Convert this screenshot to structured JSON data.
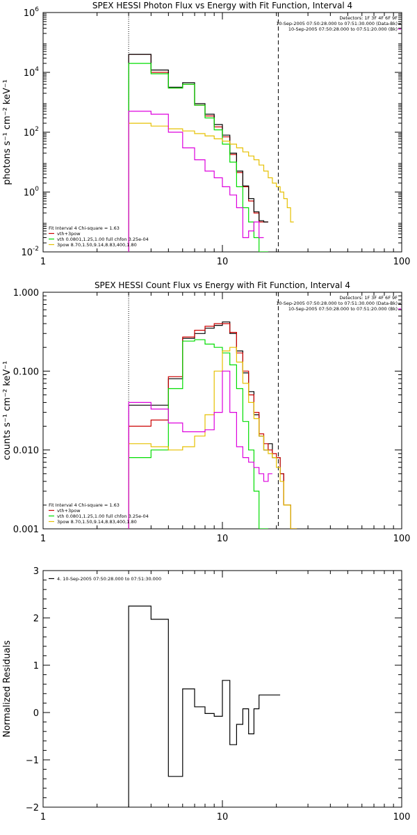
{
  "colors": {
    "background": "#ffffff",
    "axis": "#000000",
    "data": "#000000",
    "total_fit": "#cc0000",
    "thermal": "#00dd00",
    "powerlaw": "#e6c000",
    "background_model": "#dd00dd"
  },
  "chart_data": [
    {
      "type": "line",
      "step": true,
      "title": "SPEX HESSI Photon Flux vs Energy with Fit Function, Interval 4",
      "xlabel": "",
      "ylabel": "photons s⁻¹ cm⁻² keV⁻¹",
      "xscale": "log",
      "yscale": "log",
      "xlim": [
        1,
        100
      ],
      "ylim": [
        0.01,
        1000000
      ],
      "xticks": [
        1,
        10,
        100
      ],
      "xtick_labels": [
        "1",
        "10",
        "100"
      ],
      "yticks": [
        0.01,
        1,
        100,
        10000,
        1000000
      ],
      "ytick_labels": [
        {
          "base": "10",
          "exp": "-2"
        },
        {
          "base": "10",
          "exp": "0"
        },
        {
          "base": "10",
          "exp": "2"
        },
        {
          "base": "10",
          "exp": "4"
        },
        {
          "base": "10",
          "exp": "6"
        }
      ],
      "vlines": [
        {
          "x": 3,
          "style": "dotted"
        },
        {
          "x": 20.5,
          "style": "dashed"
        }
      ],
      "info_lines": [
        "Detectors: 1F 3F 4F 6F 9F",
        "10-Sep-2005 07:50:28.000 to 07:51:30.000 (Data-Bk)",
        "10-Sep-2005 07:50:28.000 to 07:51:20.000 (Bk)"
      ],
      "legend": {
        "header": "Fit Interval 4   Chi-square = 1.63",
        "entries": [
          {
            "label": "vth+3pow",
            "color": "#cc0000"
          },
          {
            "label": "vth 0.0801,1.25,1.00   full chfon 3.25e-04",
            "color": "#00dd00"
          },
          {
            "label": "3pow 8.70,1.50,9.14,8.83,400,1.80",
            "color": "#e6c000"
          }
        ]
      },
      "edges": [
        3,
        4,
        5,
        6,
        7,
        8,
        9,
        10,
        11,
        12,
        13,
        14,
        15,
        16,
        17,
        18,
        19,
        20,
        21,
        22,
        23,
        24,
        25
      ],
      "series": [
        {
          "name": "vth+3pow",
          "role": "total",
          "values": [
            40000,
            10000,
            3000,
            4000,
            800,
            350,
            150,
            70,
            18,
            4.5,
            1.5,
            0.5,
            0.2,
            0.1,
            0.1,
            null,
            null,
            null,
            null,
            null,
            null,
            null
          ]
        },
        {
          "name": "data",
          "role": "data",
          "values": [
            40000,
            12000,
            3200,
            4500,
            900,
            400,
            180,
            80,
            20,
            5,
            1.6,
            0.6,
            0.22,
            0.11,
            0.1,
            null,
            null,
            null,
            null,
            null,
            null,
            null
          ]
        },
        {
          "name": "vth",
          "role": "thermal",
          "values": [
            20000,
            9000,
            3000,
            4000,
            800,
            300,
            120,
            40,
            10,
            1.5,
            0.3,
            0.1,
            0.03,
            0.01,
            0.01,
            null,
            null,
            null,
            null,
            null,
            null,
            null
          ]
        },
        {
          "name": "3pow",
          "role": "powerlaw",
          "values": [
            200,
            160,
            130,
            110,
            90,
            75,
            60,
            50,
            40,
            30,
            22,
            16,
            12,
            8,
            5,
            3,
            2,
            1.5,
            1,
            0.6,
            0.3,
            0.1
          ]
        },
        {
          "name": "bk",
          "role": "background",
          "values": [
            500,
            400,
            100,
            30,
            12,
            5,
            3,
            1.5,
            0.8,
            0.3,
            0.03,
            0.05,
            0.1,
            0.03,
            null,
            null,
            null,
            null,
            null,
            null,
            null,
            null
          ]
        }
      ]
    },
    {
      "type": "line",
      "step": true,
      "title": "SPEX HESSI Count Flux vs Energy with Fit Function, Interval 4",
      "xlabel": "",
      "ylabel": "counts s⁻¹ cm⁻² keV⁻¹",
      "xscale": "log",
      "yscale": "log",
      "xlim": [
        1,
        100
      ],
      "ylim": [
        0.001,
        1
      ],
      "xticks": [
        1,
        10,
        100
      ],
      "xtick_labels": [
        "1",
        "10",
        "100"
      ],
      "yticks": [
        0.001,
        0.01,
        0.1,
        1
      ],
      "ytick_labels": [
        "0.001",
        "0.010",
        "0.100",
        "1.000"
      ],
      "vlines": [
        {
          "x": 3,
          "style": "dotted"
        },
        {
          "x": 20.5,
          "style": "dashed"
        }
      ],
      "info_lines": [
        "Detectors: 1F 3F 4F 6F 9F",
        "10-Sep-2005 07:50:28.000 to 07:51:30.000 (Data-Bk)",
        "10-Sep-2005 07:50:28.000 to 07:51:20.000 (Bk)"
      ],
      "legend": {
        "header": "Fit Interval 4   Chi-square = 1.63",
        "entries": [
          {
            "label": "vth+3pow",
            "color": "#cc0000"
          },
          {
            "label": "vth 0.0801,1.25,1.00   full chfon 3.25e-04",
            "color": "#00dd00"
          },
          {
            "label": "3pow 8.70,1.50,9.14,8.83,400,1.80",
            "color": "#e6c000"
          }
        ]
      },
      "edges": [
        3,
        4,
        5,
        6,
        7,
        8,
        9,
        10,
        11,
        12,
        13,
        14,
        15,
        16,
        17,
        18,
        19,
        20,
        21,
        22,
        23,
        24,
        25,
        26
      ],
      "series": [
        {
          "name": "data",
          "role": "data",
          "values": [
            0.037,
            0.037,
            0.08,
            0.26,
            0.3,
            0.35,
            0.38,
            0.42,
            0.3,
            0.18,
            0.095,
            0.055,
            0.028,
            0.015,
            0.01,
            0.012,
            0.008,
            0.008,
            0.005,
            0.002,
            0.002,
            0.001,
            0.001
          ]
        },
        {
          "name": "vth+3pow",
          "role": "total",
          "values": [
            0.02,
            0.024,
            0.085,
            0.27,
            0.33,
            0.37,
            0.4,
            0.4,
            0.31,
            0.17,
            0.1,
            0.05,
            0.03,
            0.016,
            0.012,
            0.01,
            0.009,
            0.008,
            0.005,
            0.002,
            0.002,
            0.001,
            0.001
          ]
        },
        {
          "name": "vth",
          "role": "thermal",
          "values": [
            0.008,
            0.01,
            0.06,
            0.24,
            0.25,
            0.22,
            0.2,
            0.17,
            0.12,
            0.06,
            0.023,
            0.01,
            0.003,
            0.001,
            0.0008,
            null,
            null,
            null,
            null,
            null,
            null,
            null,
            null
          ]
        },
        {
          "name": "3pow",
          "role": "powerlaw",
          "values": [
            0.012,
            0.011,
            0.01,
            0.011,
            0.015,
            0.028,
            0.1,
            0.18,
            0.2,
            0.13,
            0.07,
            0.04,
            0.025,
            0.015,
            0.01,
            0.009,
            0.008,
            0.006,
            0.004,
            0.002,
            0.002,
            0.001,
            0.001
          ]
        },
        {
          "name": "bk",
          "role": "background",
          "values": [
            0.04,
            0.033,
            0.022,
            0.017,
            0.017,
            0.018,
            0.03,
            0.1,
            0.03,
            0.011,
            0.008,
            0.007,
            0.006,
            0.005,
            0.004,
            0.005,
            null,
            null,
            null,
            null,
            null,
            null,
            null
          ]
        }
      ]
    },
    {
      "type": "line",
      "step": true,
      "title": "",
      "xlabel": "",
      "ylabel": "Normalized Residuals",
      "xscale": "log",
      "yscale": "linear",
      "xlim": [
        1,
        100
      ],
      "ylim": [
        -2,
        3
      ],
      "xticks": [
        1,
        10,
        100
      ],
      "xtick_labels": [
        "1",
        "10",
        "100"
      ],
      "yticks": [
        -2,
        -1,
        0,
        1,
        2,
        3
      ],
      "ytick_labels": [
        "−2",
        "−1",
        "0",
        "1",
        "2",
        "3"
      ],
      "legend": {
        "entries": [
          {
            "label": "4. 10-Sep-2005 07:50:28.000 to 07:51:30.000",
            "color": "#000000"
          }
        ]
      },
      "edges": [
        3,
        4,
        5,
        6,
        7,
        8,
        9,
        10,
        11,
        12,
        13,
        14,
        15,
        16,
        17,
        18,
        19,
        20,
        21
      ],
      "series": [
        {
          "name": "residuals",
          "role": "data",
          "values": [
            2.25,
            1.97,
            -1.35,
            0.5,
            0.12,
            -0.02,
            -0.08,
            0.68,
            -0.68,
            -0.25,
            0.08,
            -0.45,
            0.08,
            0.37,
            0.37,
            0.37,
            0.37,
            0.37
          ]
        }
      ]
    }
  ]
}
